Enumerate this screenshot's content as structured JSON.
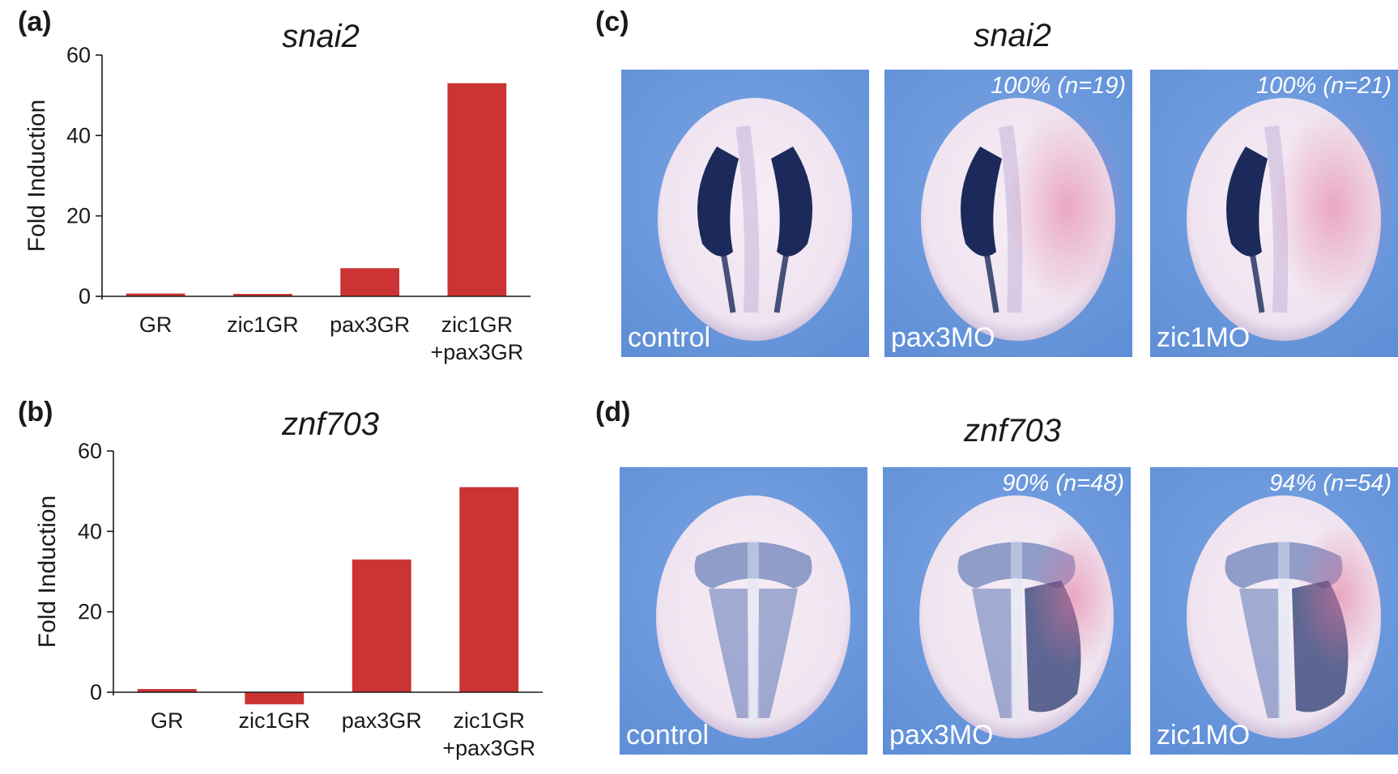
{
  "panels": {
    "a": "(a)",
    "b": "(b)",
    "c": "(c)",
    "d": "(d)"
  },
  "chart_data": [
    {
      "type": "bar",
      "title": "snai2",
      "ylabel": "Fold Induction",
      "xlabel": "",
      "categories": [
        "GR",
        "zic1GR",
        "pax3GR",
        "zic1GR\n+pax3GR"
      ],
      "values": [
        0.7,
        0.6,
        7,
        53
      ],
      "ylim": [
        0,
        60
      ],
      "yticks": [
        0,
        20,
        40,
        60
      ],
      "bar_color": "#cc3333"
    },
    {
      "type": "bar",
      "title": "znf703",
      "ylabel": "Fold Induction",
      "xlabel": "",
      "categories": [
        "GR",
        "zic1GR",
        "pax3GR",
        "zic1GR\n+pax3GR"
      ],
      "values": [
        0.8,
        -3,
        33,
        51
      ],
      "ylim": [
        0,
        60
      ],
      "yticks": [
        0,
        20,
        40,
        60
      ],
      "bar_color": "#cc3333"
    }
  ],
  "images": {
    "snai2": {
      "title": "snai2",
      "photos": [
        {
          "condition": "control",
          "percent": "",
          "stain": "bilateral"
        },
        {
          "condition": "pax3MO",
          "percent": "100% (n=19)",
          "stain": "left"
        },
        {
          "condition": "zic1MO",
          "percent": "100% (n=21)",
          "stain": "left"
        }
      ]
    },
    "znf703": {
      "title": "znf703",
      "photos": [
        {
          "condition": "control",
          "percent": "",
          "stain": "bilateral"
        },
        {
          "condition": "pax3MO",
          "percent": "90% (n=48)",
          "stain": "left"
        },
        {
          "condition": "zic1MO",
          "percent": "94% (n=54)",
          "stain": "left"
        }
      ]
    }
  },
  "colors": {
    "background_blue": "#5e8ed6",
    "embryo": "#efe3ef",
    "snai2_stain": "#1b2a5a",
    "znf703_stain": "#3e5ea6",
    "injection_tracer": "#e3739a"
  }
}
